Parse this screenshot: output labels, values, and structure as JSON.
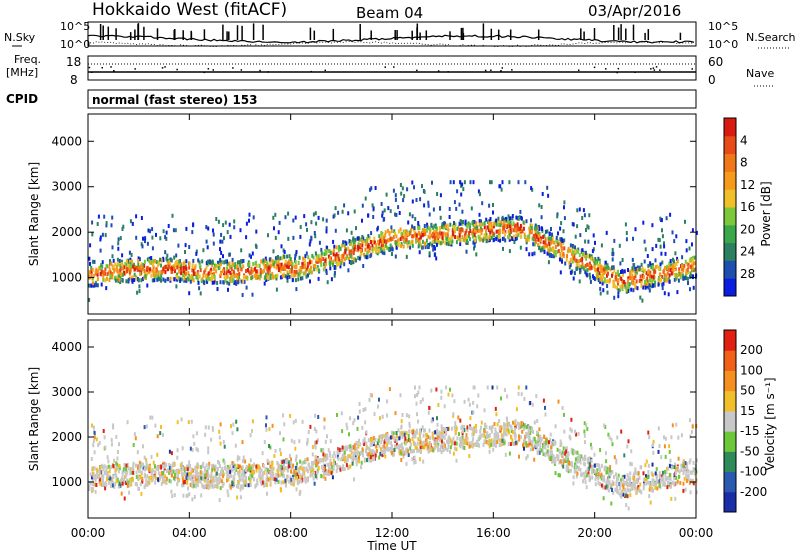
{
  "header": {
    "station": "Hokkaido West (fitACF)",
    "beam": "Beam 04",
    "date": "03/Apr/2016"
  },
  "noise_panel": {
    "left_label": "N.Sky",
    "right_label": "N.Search",
    "left_ticks": [
      "10^5",
      "10^0"
    ],
    "right_ticks": [
      "10^5",
      "10^0"
    ]
  },
  "freq_panel": {
    "left_label_line1": "Freq.",
    "left_label_line2": "[MHz]",
    "right_label": "Nave",
    "left_ticks": [
      "18",
      "8"
    ],
    "right_ticks": [
      "60",
      "0"
    ]
  },
  "cpid": {
    "label": "CPID",
    "text": "normal (fast stereo) 153"
  },
  "chart_data": [
    {
      "type": "heatmap",
      "panel": "power",
      "ylabel": "Slant Range [km]",
      "y_ticks": [
        "1000",
        "2000",
        "3000",
        "4000"
      ],
      "ylim": [
        200,
        4600
      ],
      "xlim_hours": [
        0,
        24
      ],
      "colorbar": {
        "label": "Power [dB]",
        "ticks": [
          "4",
          "8",
          "12",
          "16",
          "20",
          "24",
          "28"
        ],
        "colors": [
          "#0b1ee0",
          "#1e4fb0",
          "#2a8060",
          "#3aa84a",
          "#7cc83a",
          "#f0c02a",
          "#f59a1a",
          "#f07818",
          "#e84a18",
          "#d81a10"
        ]
      }
    },
    {
      "type": "heatmap",
      "panel": "velocity",
      "ylabel": "Slant Range [km]",
      "y_ticks": [
        "1000",
        "2000",
        "3000",
        "4000"
      ],
      "ylim": [
        200,
        4600
      ],
      "xlim_hours": [
        0,
        24
      ],
      "colorbar": {
        "label": "Velocity [m s⁻¹]",
        "ticks": [
          "200",
          "100",
          "50",
          "15",
          "-15",
          "-50",
          "-100",
          "-200"
        ],
        "colors": [
          "#1a2ea8",
          "#2a5ab0",
          "#2f8a5a",
          "#6cc83a",
          "#c8c8c8",
          "#f0c02a",
          "#f59020",
          "#f06018",
          "#e02010"
        ]
      }
    }
  ],
  "x_axis": {
    "label": "Time UT",
    "ticks": [
      "00:00",
      "04:00",
      "08:00",
      "12:00",
      "16:00",
      "20:00",
      "00:00"
    ]
  }
}
